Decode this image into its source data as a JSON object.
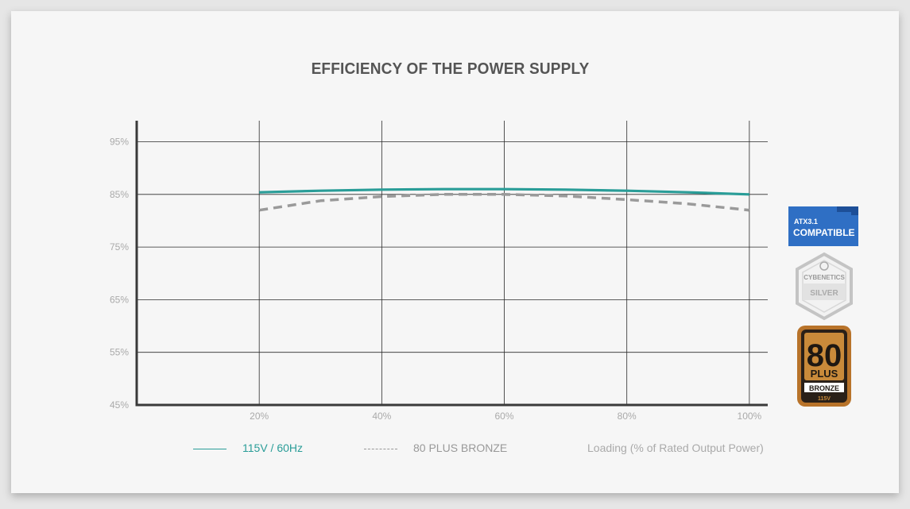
{
  "chart_data": {
    "type": "line",
    "title": "EFFICIENCY OF THE POWER SUPPLY",
    "xlabel": "Loading (% of Rated Output Power)",
    "ylabel": "",
    "x": [
      20,
      30,
      40,
      50,
      60,
      70,
      80,
      90,
      100
    ],
    "x_ticks": [
      "20%",
      "40%",
      "60%",
      "80%",
      "100%"
    ],
    "x_tick_values": [
      20,
      40,
      60,
      80,
      100
    ],
    "y_ticks": [
      "95%",
      "85%",
      "75%",
      "65%",
      "55%",
      "45%"
    ],
    "y_tick_values": [
      95,
      85,
      75,
      65,
      55,
      45
    ],
    "xlim": [
      0,
      103
    ],
    "ylim": [
      45,
      99
    ],
    "grid": true,
    "legend_position": "bottom-left",
    "series": [
      {
        "name": "115V / 60Hz",
        "color": "#2a9d98",
        "style": "solid",
        "values": [
          85.4,
          85.7,
          85.9,
          86.0,
          86.0,
          85.9,
          85.7,
          85.4,
          85.0
        ]
      },
      {
        "name": "80 PLUS BRONZE",
        "color": "#9a9a9a",
        "style": "dashed",
        "values": [
          82.0,
          83.8,
          84.6,
          85.0,
          85.0,
          84.7,
          84.0,
          83.2,
          82.0
        ]
      }
    ]
  },
  "badges": {
    "atx": {
      "line1": "ATX3.1",
      "line2": "COMPATIBLE",
      "color": "#2f6fc4"
    },
    "cybenetics": {
      "line1": "CYBENETICS",
      "line2": "SILVER"
    },
    "plus80": {
      "number": "80",
      "plus": "PLUS",
      "tier": "BRONZE",
      "voltage": "115V",
      "color": "#b8732a"
    }
  }
}
